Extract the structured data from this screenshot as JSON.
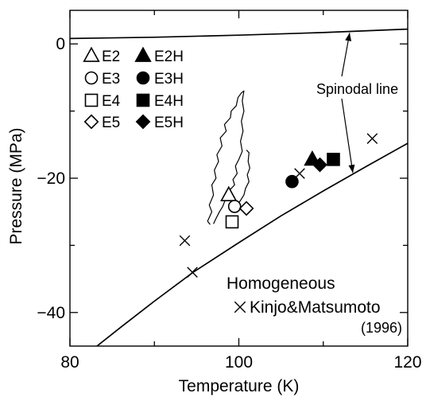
{
  "chart_data": {
    "type": "scatter",
    "title": "",
    "xlabel": "Temperature (K)",
    "ylabel": "Pressure (MPa)",
    "xlim": [
      80,
      120
    ],
    "ylim": [
      -45,
      5
    ],
    "x_ticks": [
      80,
      100,
      120
    ],
    "y_ticks": [
      0,
      -20,
      -40
    ],
    "x_tick_labels": [
      "80",
      "100",
      "120"
    ],
    "y_tick_labels": [
      "0",
      "−20",
      "−40"
    ],
    "grid": false,
    "legend_position": "top-left",
    "series": [
      {
        "name": "E2",
        "marker": "triangle-open",
        "points": [
          {
            "x": 98.8,
            "y": -22.5
          }
        ]
      },
      {
        "name": "E3",
        "marker": "circle-open",
        "points": [
          {
            "x": 99.5,
            "y": -24.2
          }
        ]
      },
      {
        "name": "E4",
        "marker": "square-open",
        "points": [
          {
            "x": 99.2,
            "y": -26.5
          }
        ]
      },
      {
        "name": "E5",
        "marker": "diamond-open",
        "points": [
          {
            "x": 100.9,
            "y": -24.5
          }
        ]
      },
      {
        "name": "E2H",
        "marker": "triangle-filled",
        "points": [
          {
            "x": 108.7,
            "y": -17.2
          }
        ]
      },
      {
        "name": "E3H",
        "marker": "circle-filled",
        "points": [
          {
            "x": 106.3,
            "y": -20.5
          }
        ]
      },
      {
        "name": "E4H",
        "marker": "square-filled",
        "points": [
          {
            "x": 111.2,
            "y": -17.2
          }
        ]
      },
      {
        "name": "E5H",
        "marker": "diamond-filled",
        "points": [
          {
            "x": 109.6,
            "y": -18.0
          }
        ]
      },
      {
        "name": "Kinjo&Matsumoto (1996)",
        "marker": "cross",
        "points": [
          {
            "x": 93.6,
            "y": -29.3
          },
          {
            "x": 94.5,
            "y": -34.0
          },
          {
            "x": 107.2,
            "y": -19.3
          },
          {
            "x": 115.8,
            "y": -14.1
          }
        ]
      }
    ],
    "curves": [
      {
        "name": "Spinodal line",
        "points": [
          {
            "x": 80,
            "y": 0.8
          },
          {
            "x": 90,
            "y": 1.0
          },
          {
            "x": 100,
            "y": 1.3
          },
          {
            "x": 110,
            "y": 1.7
          },
          {
            "x": 120,
            "y": 2.2
          }
        ]
      },
      {
        "name": "Homogeneous",
        "points": [
          {
            "x": 83.2,
            "y": -45
          },
          {
            "x": 86,
            "y": -42.2
          },
          {
            "x": 90,
            "y": -38.3
          },
          {
            "x": 94.6,
            "y": -34.0
          },
          {
            "x": 100,
            "y": -29.6
          },
          {
            "x": 105,
            "y": -25.6
          },
          {
            "x": 110,
            "y": -21.9
          },
          {
            "x": 115,
            "y": -18.3
          },
          {
            "x": 120,
            "y": -14.8
          }
        ]
      },
      {
        "name": "",
        "points": [
          {
            "x": 96.6,
            "y": -26.9
          },
          {
            "x": 96.3,
            "y": -26.4
          },
          {
            "x": 96.8,
            "y": -25.0
          },
          {
            "x": 96.5,
            "y": -24.0
          },
          {
            "x": 97.0,
            "y": -22.5
          },
          {
            "x": 96.8,
            "y": -21.0
          },
          {
            "x": 97.3,
            "y": -20.0
          },
          {
            "x": 97.1,
            "y": -18.8
          },
          {
            "x": 97.6,
            "y": -17.5
          },
          {
            "x": 97.4,
            "y": -16.5
          },
          {
            "x": 98.0,
            "y": -15.2
          },
          {
            "x": 97.8,
            "y": -14.0
          },
          {
            "x": 98.5,
            "y": -13.0
          },
          {
            "x": 98.3,
            "y": -12.0
          },
          {
            "x": 99.0,
            "y": -11.0
          },
          {
            "x": 99.1,
            "y": -10.0
          },
          {
            "x": 99.7,
            "y": -9.2
          },
          {
            "x": 99.9,
            "y": -8.0
          },
          {
            "x": 100.3,
            "y": -7.3
          },
          {
            "x": 100.6,
            "y": -7.0
          },
          {
            "x": 100.4,
            "y": -8.5
          },
          {
            "x": 100.6,
            "y": -10.0
          },
          {
            "x": 100.3,
            "y": -11.5
          },
          {
            "x": 100.5,
            "y": -13.0
          },
          {
            "x": 100.2,
            "y": -14.5
          },
          {
            "x": 100.4,
            "y": -16.0
          },
          {
            "x": 100.0,
            "y": -17.2
          },
          {
            "x": 99.6,
            "y": -18.2
          },
          {
            "x": 99.8,
            "y": -19.3
          },
          {
            "x": 99.3,
            "y": -20.2
          },
          {
            "x": 99.5,
            "y": -21.0
          },
          {
            "x": 98.9,
            "y": -21.8
          },
          {
            "x": 99.1,
            "y": -22.4
          },
          {
            "x": 98.4,
            "y": -23.2
          },
          {
            "x": 98.1,
            "y": -24.2
          },
          {
            "x": 97.7,
            "y": -25.0
          },
          {
            "x": 97.3,
            "y": -26.0
          },
          {
            "x": 97.0,
            "y": -26.8
          }
        ]
      },
      {
        "name": "",
        "points": [
          {
            "x": 100.9,
            "y": -15.8
          },
          {
            "x": 101.2,
            "y": -16.2
          },
          {
            "x": 101.1,
            "y": -17.5
          },
          {
            "x": 101.3,
            "y": -18.5
          },
          {
            "x": 101.0,
            "y": -19.5
          },
          {
            "x": 101.2,
            "y": -20.5
          },
          {
            "x": 100.8,
            "y": -21.5
          },
          {
            "x": 100.6,
            "y": -22.5
          },
          {
            "x": 100.2,
            "y": -23.3
          },
          {
            "x": 99.8,
            "y": -24.0
          }
        ]
      }
    ],
    "annotations": [
      {
        "text": "Spinodal line",
        "arrows_to": [
          {
            "x": 113.5,
            "y": 2.0
          },
          {
            "x": 113.5,
            "y": -19.2
          }
        ]
      },
      {
        "text": "Homogeneous"
      },
      {
        "text": "Kinjo&Matsumoto",
        "marker": "cross"
      },
      {
        "text": "(1996)"
      }
    ]
  }
}
